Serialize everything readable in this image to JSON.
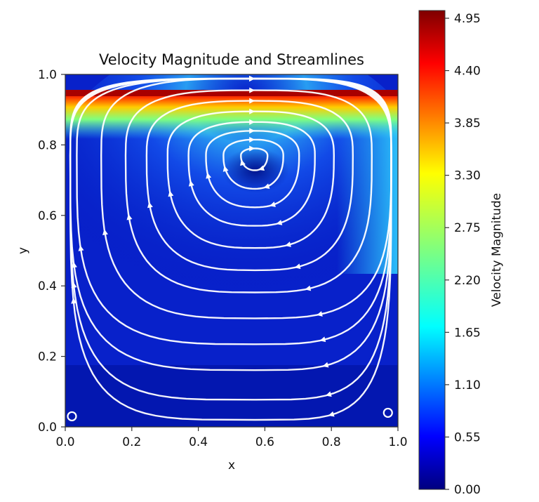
{
  "chart_data": {
    "type": "heatmap",
    "title": "Velocity Magnitude and Streamlines",
    "xlabel": "x",
    "ylabel": "y",
    "xlim": [
      0.0,
      1.0
    ],
    "ylim": [
      0.0,
      1.0
    ],
    "xticks": [
      "0.0",
      "0.2",
      "0.4",
      "0.6",
      "0.8",
      "1.0"
    ],
    "yticks": [
      "0.0",
      "0.2",
      "0.4",
      "0.6",
      "0.8",
      "1.0"
    ],
    "colorbar": {
      "label": "Velocity Magnitude",
      "range": [
        0.0,
        4.95
      ],
      "ticks": [
        "0.00",
        "0.55",
        "1.10",
        "1.65",
        "2.20",
        "2.75",
        "3.30",
        "3.85",
        "4.40",
        "4.95"
      ],
      "colormap": "jet"
    },
    "field": {
      "description_only": false,
      "lid_velocity_peak": 4.95,
      "vortex_center": [
        0.57,
        0.77
      ],
      "secondary_vortices": [
        [
          0.02,
          0.03
        ],
        [
          0.97,
          0.04
        ]
      ],
      "rotation": "clockwise"
    },
    "streamlines": [
      {
        "r": 0.04
      },
      {
        "r": 0.09
      },
      {
        "r": 0.14
      },
      {
        "r": 0.19
      },
      {
        "r": 0.25
      },
      {
        "r": 0.31
      },
      {
        "r": 0.37
      },
      {
        "r": 0.44
      },
      {
        "r": 0.51
      },
      {
        "r": 0.58
      },
      {
        "r": 0.66
      },
      {
        "r": 0.74
      }
    ]
  },
  "colors": {
    "streamline": "#ffffff",
    "axes": "#333333"
  }
}
